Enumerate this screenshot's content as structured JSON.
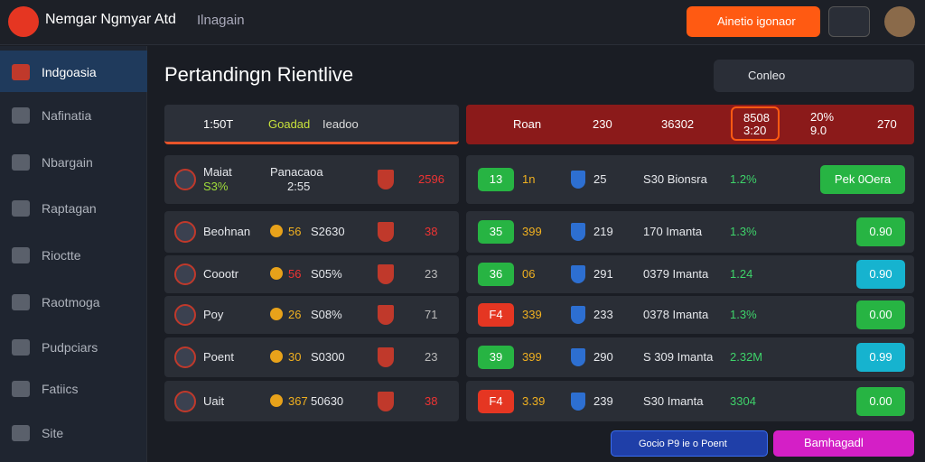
{
  "header": {
    "brand": "Nemgar Ngmyar Atd",
    "nav": "Ilnagain",
    "cta": "Ainetio igonaor"
  },
  "sidebar": [
    "Indgoasia",
    "Nafinatia",
    "Nbargain",
    "Raptagan",
    "Rioctte",
    "Raotmoga",
    "Pudpciars",
    "Fatiics",
    "Site"
  ],
  "main": {
    "title": "Pertandingn Rientlive",
    "dropdown": "Conleo"
  },
  "left_panel": {
    "header": [
      "1:50T",
      "Goadad",
      "Ieadoo"
    ],
    "rows": [
      [
        "Maiat",
        "S3%",
        "Panacaoa",
        "2:55",
        "2596"
      ],
      [
        "Beohnan",
        "56",
        "S2630",
        "",
        "38"
      ],
      [
        "Coootr",
        "56",
        "S05%",
        "",
        "23"
      ],
      [
        "Poy",
        "26",
        "S08%",
        "",
        "71"
      ],
      [
        "Poent",
        "30",
        "S0300",
        "",
        "23"
      ],
      [
        "Uait",
        "367",
        "50630",
        "",
        "38"
      ]
    ]
  },
  "right_panel": {
    "header": [
      "Roan",
      "230",
      "36302",
      "8508",
      "3:20",
      "20%",
      "9.0",
      "270"
    ],
    "rows": [
      {
        "badge": "13",
        "badge_color": "#27b443",
        "a": "1n",
        "b": "25",
        "c": "S30 Bionsra",
        "d": "1.2%",
        "btn": "Pek 0Oera",
        "btn_color": "#27b443"
      },
      {
        "badge": "35",
        "badge_color": "#27b443",
        "a": "399",
        "b": "219",
        "c": "170 Imanta",
        "d": "1.3%",
        "btn": "0.90",
        "btn_color": "#27b443"
      },
      {
        "badge": "36",
        "badge_color": "#27b443",
        "a": "06",
        "b": "291",
        "c": "0379 Imanta",
        "d": "1.24",
        "btn": "0.90",
        "btn_color": "#16b3cf"
      },
      {
        "badge": "F4",
        "badge_color": "#e53622",
        "a": "339",
        "b": "233",
        "c": "0378 Imanta",
        "d": "1.3%",
        "btn": "0.00",
        "btn_color": "#27b443"
      },
      {
        "badge": "39",
        "badge_color": "#27b443",
        "a": "399",
        "b": "290",
        "c": "S 309 Imanta",
        "d": "2.32M",
        "btn": "0.99",
        "btn_color": "#16b3cf"
      },
      {
        "badge": "F4",
        "badge_color": "#e53622",
        "a": "3.39",
        "b": "239",
        "c": "S30 Imanta",
        "d": "3304",
        "btn": "0.00",
        "btn_color": "#27b443"
      }
    ]
  },
  "footer": {
    "left": "Gocio   P9 ie o Poent",
    "right": "Bamhagadl"
  }
}
